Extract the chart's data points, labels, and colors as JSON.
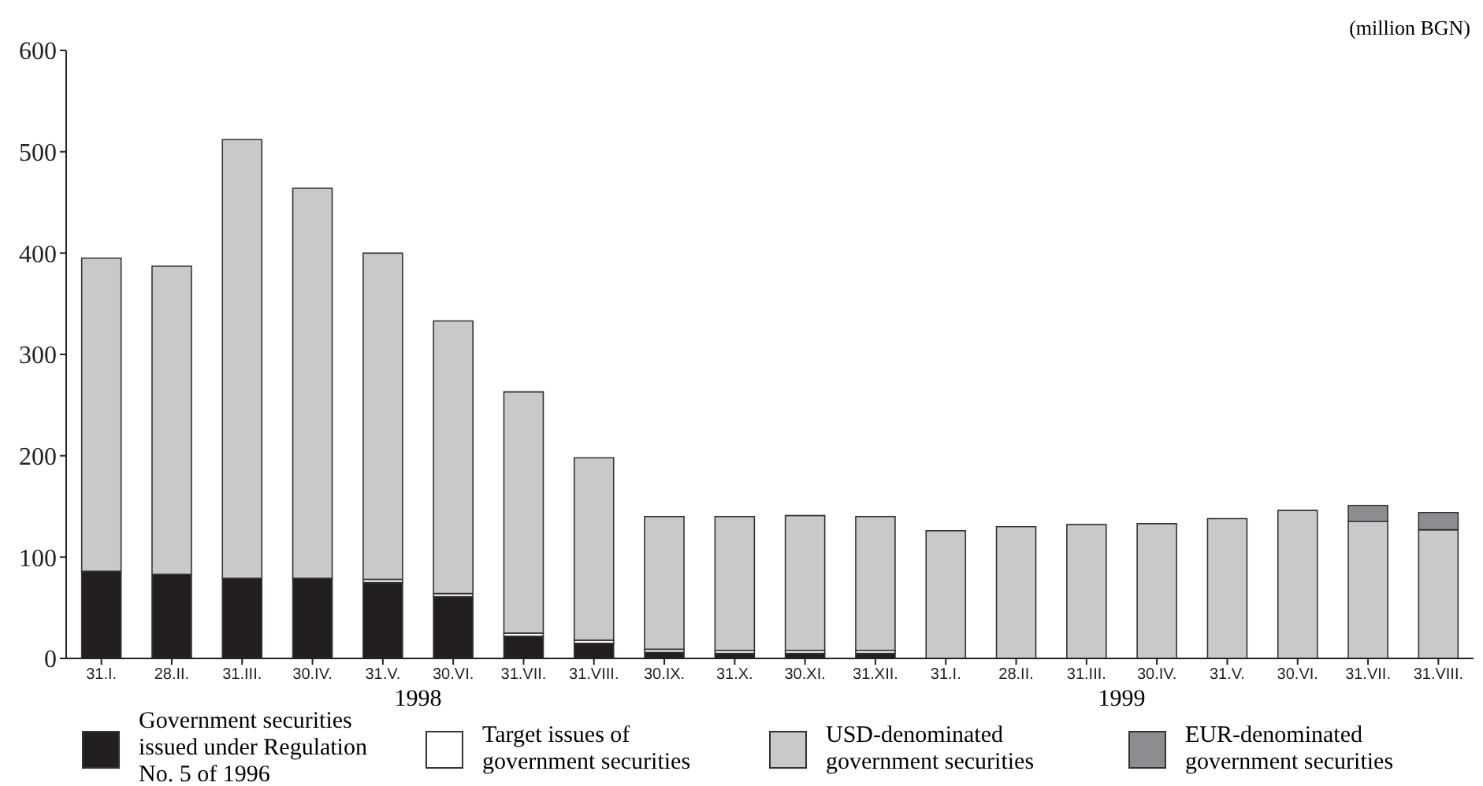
{
  "chart_data": {
    "type": "bar",
    "stacked": true,
    "ylabel": "(million BGN)",
    "categories": [
      "31.I.",
      "28.II.",
      "31.III.",
      "30.IV.",
      "31.V.",
      "30.VI.",
      "31.VII.",
      "31.VIII.",
      "30.IX.",
      "31.X.",
      "30.XI.",
      "31.XII.",
      "31.I.",
      "28.II.",
      "31.III.",
      "30.IV.",
      "31.V.",
      "30.VI.",
      "31.VII.",
      "31.VIII."
    ],
    "annotations": [
      "1998",
      "1999"
    ],
    "series": [
      {
        "name": "Government securities issued under Regulation No. 5 of 1996",
        "color": "#231f20",
        "values": [
          86,
          83,
          79,
          79,
          75,
          61,
          22,
          15,
          6,
          5,
          5,
          5,
          0,
          0,
          0,
          0,
          0,
          0,
          0,
          0
        ]
      },
      {
        "name": "Target issues of government securities",
        "color": "#ffffff",
        "values": [
          0,
          0,
          0,
          0,
          3,
          3,
          3,
          3,
          3,
          3,
          3,
          3,
          0,
          0,
          0,
          0,
          0,
          0,
          0,
          0
        ]
      },
      {
        "name": "USD-denominated government securities",
        "color": "#c8c9cb",
        "values": [
          309,
          304,
          433,
          385,
          322,
          269,
          238,
          180,
          131,
          132,
          133,
          132,
          126,
          130,
          132,
          133,
          138,
          146,
          135,
          127
        ]
      },
      {
        "name": "EUR-denominated government securities",
        "color": "#8c8d90",
        "values": [
          0,
          0,
          0,
          0,
          0,
          0,
          0,
          0,
          0,
          0,
          0,
          0,
          0,
          0,
          0,
          0,
          0,
          0,
          16,
          17
        ]
      }
    ],
    "ylim": [
      0,
      600
    ],
    "yticks": [
      0,
      100,
      200,
      300,
      400,
      500,
      600
    ],
    "grid": false,
    "legend": "bottom"
  }
}
